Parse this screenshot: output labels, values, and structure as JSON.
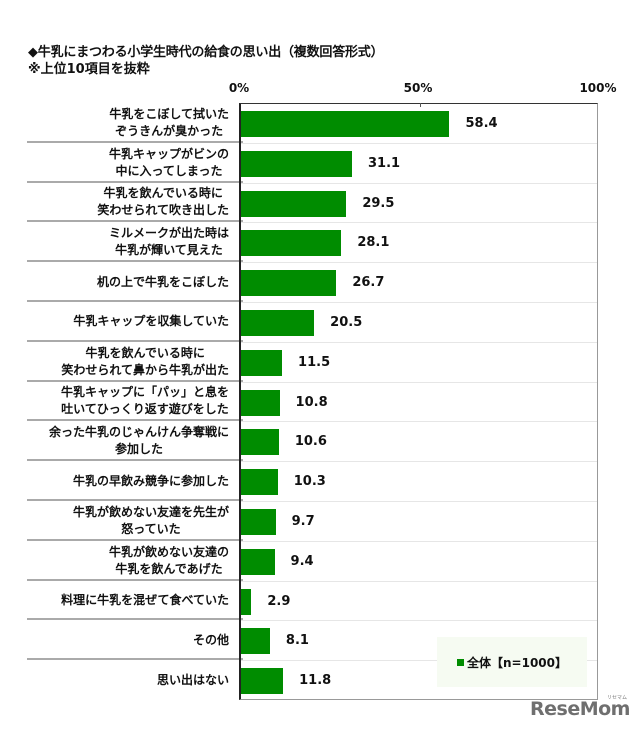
{
  "chart_data": {
    "type": "bar",
    "orientation": "horizontal",
    "title": "◆牛乳にまつわる小学生時代の給食の思い出（複数回答形式）",
    "subtitle": "※上位10項目を抜粋",
    "xlabel": "",
    "ylabel": "",
    "xlim": [
      0,
      100
    ],
    "x_ticks": [
      "0%",
      "50%",
      "100%"
    ],
    "grid": false,
    "legend_position": "bottom-right",
    "categories": [
      "牛乳をこぼして拭いた\nぞうきんが臭かった",
      "牛乳キャップがビンの\n中に入ってしまった",
      "牛乳を飲んでいる時に\n笑わせられて吹き出した",
      "ミルメークが出た時は\n牛乳が輝いて見えた",
      "机の上で牛乳をこぼした",
      "牛乳キャップを収集していた",
      "牛乳を飲んでいる時に\n笑わせられて鼻から牛乳が出た",
      "牛乳キャップに「パッ」と息を\n吐いてひっくり返す遊びをした",
      "余った牛乳のじゃんけん争奪戦に\n参加した",
      "牛乳の早飲み競争に参加した",
      "牛乳が飲めない友達を先生が\n怒っていた",
      "牛乳が飲めない友達の\n牛乳を飲んであげた",
      "料理に牛乳を混ぜて食べていた",
      "その他",
      "思い出はない"
    ],
    "series": [
      {
        "name": "全体【n=1000】",
        "color": "#008C00",
        "values": [
          58.4,
          31.1,
          29.5,
          28.1,
          26.7,
          20.5,
          11.5,
          10.8,
          10.6,
          10.3,
          9.7,
          9.4,
          2.9,
          8.1,
          11.8
        ]
      }
    ]
  },
  "labels": {
    "title": "◆牛乳にまつわる小学生時代の給食の思い出（複数回答形式）",
    "subtitle": "※上位10項目を抜粋",
    "tick_0": "0%",
    "tick_50": "50%",
    "tick_100": "100%",
    "legend": "全体【n=1000】",
    "value_labels": [
      "58.4",
      "31.1",
      "29.5",
      "28.1",
      "26.7",
      "20.5",
      "11.5",
      "10.8",
      "10.6",
      "10.3",
      "9.7",
      "9.4",
      "2.9",
      "8.1",
      "11.8"
    ]
  },
  "watermark": {
    "text": "ReseMom",
    "ruby": "リセマム"
  }
}
